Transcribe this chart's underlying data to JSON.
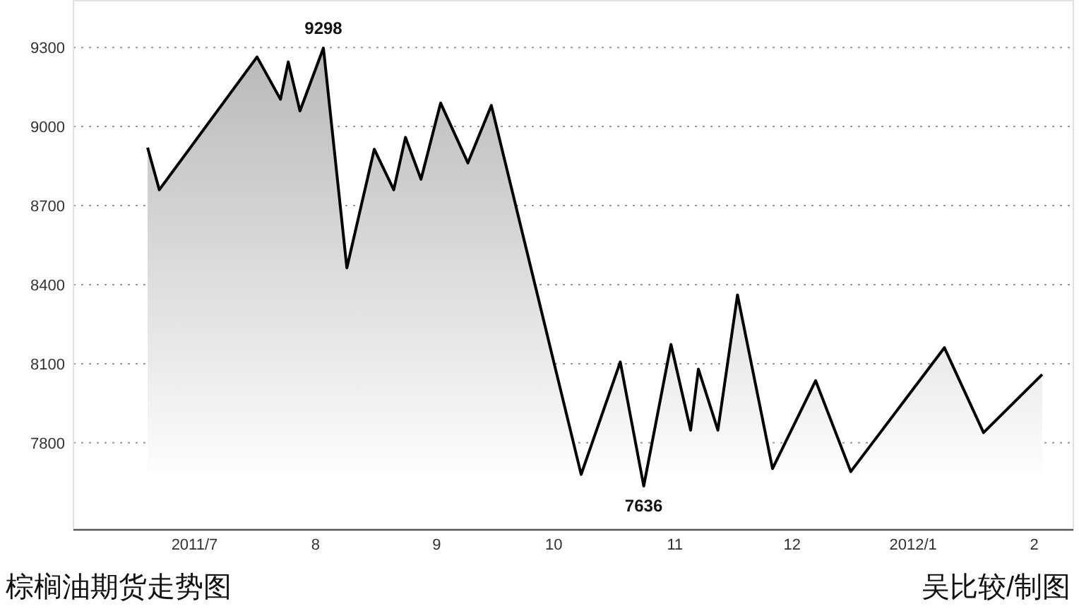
{
  "chart_data": {
    "type": "area",
    "title": "棕榈油期货走势图",
    "annotations": [
      {
        "text": "9298",
        "x": "2011-08-03",
        "y": 9298
      },
      {
        "text": "7636",
        "x": "2011-10-24",
        "y": 7636
      },
      "吴比较/制图"
    ],
    "x": [
      "2011-06-19",
      "2011-06-22",
      "2011-07-17",
      "2011-07-23",
      "2011-07-25",
      "2011-07-28",
      "2011-08-03",
      "2011-08-09",
      "2011-08-16",
      "2011-08-21",
      "2011-08-24",
      "2011-08-28",
      "2011-09-02",
      "2011-09-09",
      "2011-09-15",
      "2011-10-08",
      "2011-10-18",
      "2011-10-24",
      "2011-10-31",
      "2011-11-05",
      "2011-11-07",
      "2011-11-12",
      "2011-11-17",
      "2011-11-26",
      "2011-12-07",
      "2011-12-16",
      "2012-01-09",
      "2012-01-19",
      "2012-02-03"
    ],
    "series": [
      {
        "color": "#000000",
        "values": [
          8920,
          8760,
          9264,
          9103,
          9245,
          9059,
          9298,
          8464,
          8914,
          8760,
          8959,
          8800,
          9089,
          8862,
          9080,
          7680,
          8107,
          7636,
          8173,
          7848,
          8080,
          7848,
          8361,
          7702,
          8036,
          7691,
          8161,
          7839,
          8059
        ]
      }
    ],
    "xlim": [
      "2011-05-31",
      "2012-02-11"
    ],
    "ylim": [
      7470,
      9480
    ],
    "xticks": [
      {
        "value": "2011-07-01",
        "label": "2011/7"
      },
      {
        "value": "2011-08-01",
        "label": "8"
      },
      {
        "value": "2011-09-01",
        "label": "9"
      },
      {
        "value": "2011-10-01",
        "label": "10"
      },
      {
        "value": "2011-11-01",
        "label": "11"
      },
      {
        "value": "2011-12-01",
        "label": "12"
      },
      {
        "value": "2012-01-01",
        "label": "2012/1"
      },
      {
        "value": "2012-02-01",
        "label": "2"
      }
    ],
    "yticks": [
      7800,
      8100,
      8400,
      8700,
      9000,
      9300
    ],
    "grid": "y",
    "marker": "none",
    "line_style": "solid"
  }
}
